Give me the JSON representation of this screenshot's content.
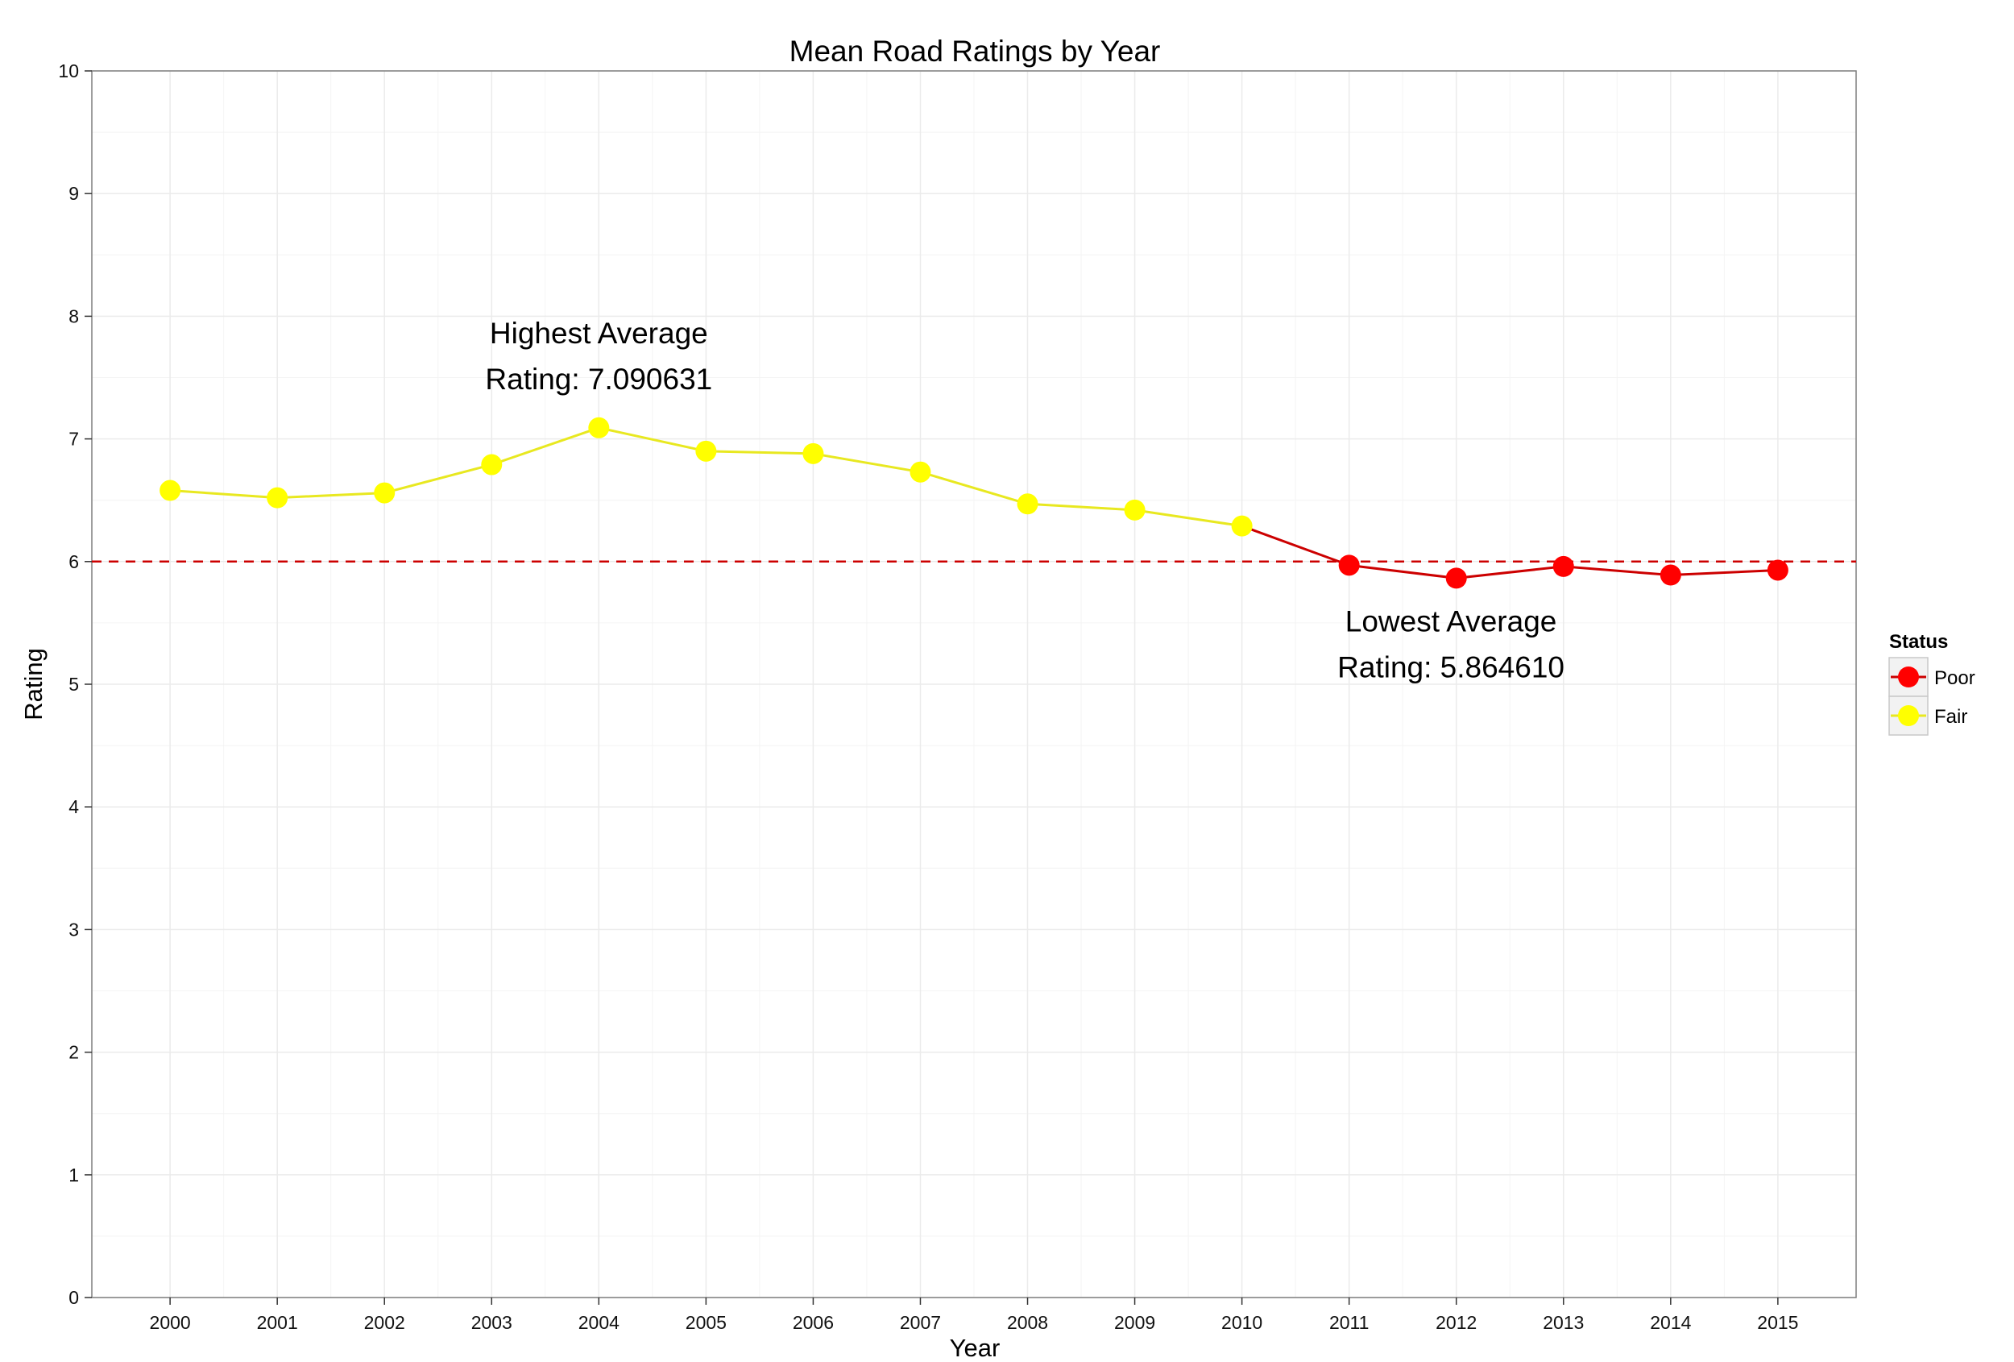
{
  "chart_data": {
    "type": "line",
    "title": "Mean Road Ratings by Year",
    "xlabel": "Year",
    "ylabel": "Rating",
    "x": [
      2000,
      2001,
      2002,
      2003,
      2004,
      2005,
      2006,
      2007,
      2008,
      2009,
      2010,
      2011,
      2012,
      2013,
      2014,
      2015
    ],
    "y": [
      6.58,
      6.52,
      6.56,
      6.79,
      7.090631,
      6.9,
      6.88,
      6.73,
      6.47,
      6.42,
      6.29,
      5.97,
      5.86461,
      5.96,
      5.89,
      5.93
    ],
    "status": [
      "Fair",
      "Fair",
      "Fair",
      "Fair",
      "Fair",
      "Fair",
      "Fair",
      "Fair",
      "Fair",
      "Fair",
      "Fair",
      "Poor",
      "Poor",
      "Poor",
      "Poor",
      "Poor"
    ],
    "xlim": [
      1999.27,
      2015.73
    ],
    "ylim": [
      0,
      10
    ],
    "y_ticks": [
      0,
      1,
      2,
      3,
      4,
      5,
      6,
      7,
      8,
      9,
      10
    ],
    "grid": true,
    "reference_line": {
      "y": 6,
      "style": "dashed",
      "color": "#cc0000"
    },
    "colors": {
      "Poor": "#ff0000",
      "Fair": "#ffff00",
      "poor_line": "#cc0000",
      "fair_line": "#e8e820",
      "grid": "#ebebeb"
    },
    "annotations": [
      {
        "lines": [
          "Highest Average",
          "Rating: 7.090631"
        ],
        "x": 2004,
        "y": 7.78
      },
      {
        "lines": [
          "Lowest Average",
          "Rating: 5.864610"
        ],
        "x": 2011.95,
        "y": 5.43
      }
    ],
    "legend": {
      "title": "Status",
      "placement": "right",
      "entries": [
        {
          "label": "Poor",
          "color": "#ff0000"
        },
        {
          "label": "Fair",
          "color": "#ffff00"
        }
      ]
    }
  }
}
